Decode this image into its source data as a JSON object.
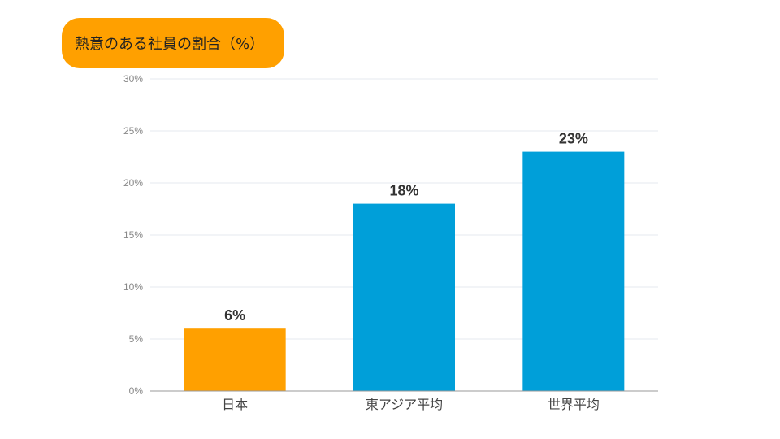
{
  "chart_data": {
    "type": "bar",
    "title": "熱意のある社員の割合（%）",
    "categories": [
      "日本",
      "東アジア平均",
      "世界平均"
    ],
    "values": [
      6,
      18,
      23
    ],
    "data_labels": [
      "6%",
      "18%",
      "23%"
    ],
    "bar_colors": [
      "#FFA000",
      "#009FD9",
      "#009FD9"
    ],
    "yticks": [
      0,
      5,
      10,
      15,
      20,
      25,
      30
    ],
    "ytick_labels": [
      "0%",
      "5%",
      "10%",
      "15%",
      "20%",
      "25%",
      "30%"
    ],
    "ylim": [
      0,
      30
    ],
    "xlabel": "",
    "ylabel": "",
    "grid": true,
    "legend": "none"
  },
  "style": {
    "title_bg": "#FFA000",
    "grid_color": "#E6E8EF",
    "axis_color": "#999999"
  }
}
